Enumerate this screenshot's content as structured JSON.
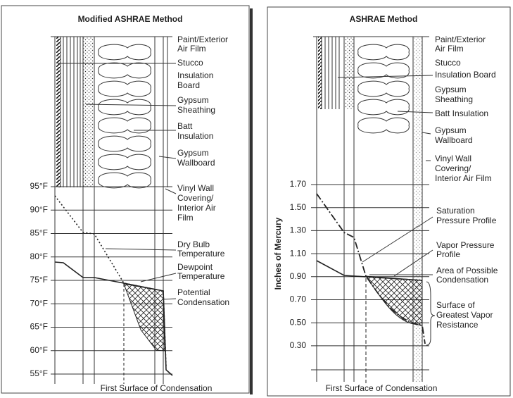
{
  "panels": [
    {
      "title": "Modified ASHRAE Method",
      "y_ticks": [
        "95°F",
        "90°F",
        "85°F",
        "80°F",
        "75°F",
        "70°F",
        "65°F",
        "60°F",
        "55°F"
      ],
      "layers": [
        [
          "Paint/Exterior",
          "Air Film"
        ],
        [
          "Stucco"
        ],
        [
          "Insulation",
          "Board"
        ],
        [
          "Gypsum",
          "Sheathing"
        ],
        [
          "Batt",
          "Insulation"
        ],
        [
          "Gypsum",
          "Wallboard"
        ],
        [
          "Vinyl Wall",
          "Covering/",
          "Interior Air",
          "Film"
        ]
      ],
      "annotations": [
        [
          "Dry Bulb",
          "Temperature"
        ],
        [
          "Dewpoint",
          "Temperature"
        ],
        [
          "Potential",
          "Condensation"
        ]
      ],
      "footer": "First Surface of Condensation"
    },
    {
      "title": "ASHRAE Method",
      "axis_label": "Inches of Mercury",
      "y_ticks": [
        "1.70",
        "1.50",
        "1.30",
        "1.10",
        "0.90",
        "0.70",
        "0.50",
        "0.30"
      ],
      "layers": [
        [
          "Paint/Exterior",
          "Air Film"
        ],
        [
          "Stucco"
        ],
        [
          "Insulation Board"
        ],
        [
          "Gypsum",
          "Sheathing"
        ],
        [
          "Batt Insulation"
        ],
        [
          "Gypsum",
          "Wallboard"
        ],
        [
          "Vinyl Wall",
          "Covering/",
          "Interior Air Film"
        ]
      ],
      "annotations": [
        [
          "Saturation",
          "Pressure Profile"
        ],
        [
          "Vapor Pressure",
          "Profile"
        ],
        [
          "Area of Possible",
          "Condensation"
        ],
        [
          "Surface of",
          "Greatest Vapor",
          "Resistance"
        ]
      ],
      "footer": "First Surface of Condensation"
    }
  ]
}
